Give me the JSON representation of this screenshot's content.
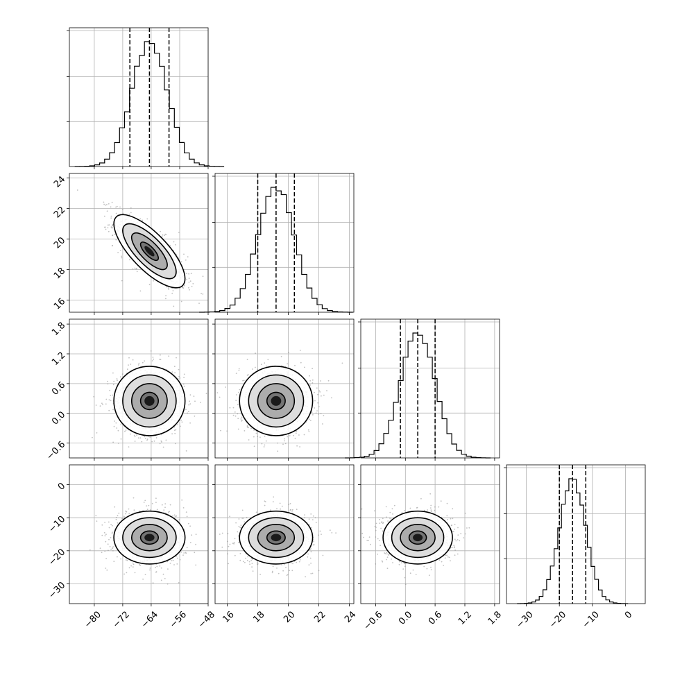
{
  "chart_data": {
    "type": "corner",
    "parameters": [
      {
        "id": "p0",
        "range": [
          -87,
          -48
        ],
        "ticks": [
          -80,
          -72,
          -64,
          -56,
          -48
        ],
        "tick_labels": [
          "−80",
          "−72",
          "−64",
          "−56",
          "−48"
        ],
        "center": -64.5,
        "sd": 5,
        "quantiles": [
          -70,
          -64.5,
          -59
        ],
        "hist_peak": [
          -65.5,
          -64.5
        ]
      },
      {
        "id": "p1",
        "range": [
          15.2,
          24.3
        ],
        "ticks": [
          16,
          18,
          20,
          22,
          24
        ],
        "tick_labels": [
          "16",
          "18",
          "20",
          "22",
          "24"
        ],
        "center": 19.2,
        "sd": 1.2,
        "quantiles": [
          18.0,
          19.2,
          20.4
        ],
        "hist_peak": [
          19.0,
          19.3
        ]
      },
      {
        "id": "p2",
        "range": [
          -0.9,
          1.9
        ],
        "ticks": [
          -0.6,
          0.0,
          0.6,
          1.2,
          1.8
        ],
        "tick_labels": [
          "−0.6",
          "0.0",
          "0.6",
          "1.2",
          "1.8"
        ],
        "center": 0.25,
        "sd": 0.35,
        "quantiles": [
          -0.1,
          0.25,
          0.6
        ],
        "hist_peak": [
          0.2,
          0.3
        ]
      },
      {
        "id": "p3",
        "range": [
          -36,
          6
        ],
        "ticks": [
          -30,
          -20,
          -10,
          0
        ],
        "tick_labels": [
          "−30",
          "−20",
          "−10",
          "0"
        ],
        "center": -16,
        "sd": 4,
        "quantiles": [
          -20,
          -16,
          -12
        ],
        "hist_peak": [
          -16.5,
          -15.5
        ]
      }
    ],
    "hist_y_ticks": [
      [
        0.33,
        0.66,
        1.0
      ],
      [
        0.33,
        0.66,
        1.0
      ],
      [
        0.33,
        0.66,
        1.0
      ],
      [
        0.33,
        0.66,
        1.0
      ]
    ],
    "correlations": {
      "1-0": -0.75,
      "2-0": 0.0,
      "2-1": 0.0,
      "3-0": 0.0,
      "3-1": 0.0,
      "3-2": 0.0
    },
    "contour_sigma_levels": [
      0.5,
      1.0,
      1.5,
      2.0
    ],
    "grid": true
  }
}
